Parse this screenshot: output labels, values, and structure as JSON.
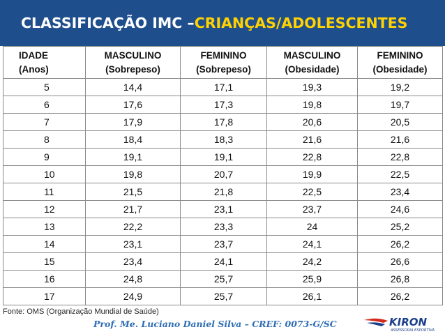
{
  "title": {
    "main": "CLASSIFICAÇÃO IMC – ",
    "accent": "CRIANÇAS/ADOLESCENTES"
  },
  "table": {
    "headers": [
      {
        "line1": "IDADE",
        "line2": "(Anos)"
      },
      {
        "line1": "MASCULINO",
        "line2": "(Sobrepeso)"
      },
      {
        "line1": "FEMININO",
        "line2": "(Sobrepeso)"
      },
      {
        "line1": "MASCULINO",
        "line2": "(Obesidade)"
      },
      {
        "line1": "FEMININO",
        "line2": "(Obesidade)"
      }
    ],
    "rows": [
      [
        "5",
        "14,4",
        "17,1",
        "19,3",
        "19,2"
      ],
      [
        "6",
        "17,6",
        "17,3",
        "19,8",
        "19,7"
      ],
      [
        "7",
        "17,9",
        "17,8",
        "20,6",
        "20,5"
      ],
      [
        "8",
        "18,4",
        "18,3",
        "21,6",
        "21,6"
      ],
      [
        "9",
        "19,1",
        "19,1",
        "22,8",
        "22,8"
      ],
      [
        "10",
        "19,8",
        "20,7",
        "19,9",
        "22,5"
      ],
      [
        "11",
        "21,5",
        "21,8",
        "22,5",
        "23,4"
      ],
      [
        "12",
        "21,7",
        "23,1",
        "23,7",
        "24,6"
      ],
      [
        "13",
        "22,2",
        "23,3",
        "24",
        "25,2"
      ],
      [
        "14",
        "23,1",
        "23,7",
        "24,1",
        "26,2"
      ],
      [
        "15",
        "23,4",
        "24,1",
        "24,2",
        "26,6"
      ],
      [
        "16",
        "24,8",
        "25,7",
        "25,9",
        "26,8"
      ],
      [
        "17",
        "24,9",
        "25,7",
        "26,1",
        "26,2"
      ]
    ]
  },
  "source": "Fonte: OMS (Organização Mundial de Saúde)",
  "footer": {
    "credit": "Prof. Me. Luciano Daniel Silva – CREF: 0073-G/SC"
  },
  "logo": {
    "brand": "KIRON",
    "tagline": "ASSESSORIA ESPORTIVA"
  },
  "colors": {
    "title_bg": "#1f4e8c",
    "title_accent": "#ffd200",
    "logo_red": "#d42a1e",
    "logo_blue": "#1c3f8a"
  }
}
